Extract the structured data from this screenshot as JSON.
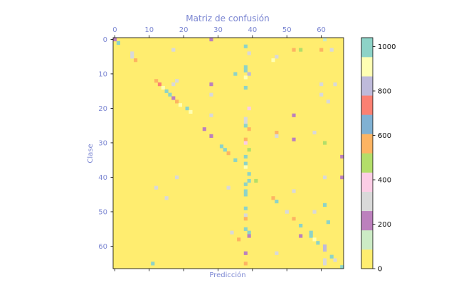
{
  "chart_data": {
    "type": "heatmap",
    "title": "Matriz de confusión",
    "xlabel": "Predicción",
    "ylabel": "Clase",
    "size": 67,
    "x_ticks": [
      0,
      10,
      20,
      30,
      40,
      50,
      60
    ],
    "y_ticks": [
      0,
      10,
      20,
      30,
      40,
      50,
      60
    ],
    "colorbar_ticks": [
      0,
      200,
      400,
      600,
      800,
      1000
    ],
    "colorbar_range": [
      0,
      1040
    ],
    "colormap": [
      "#ffed6f",
      "#ccebc5",
      "#bc80bd",
      "#d9d9d9",
      "#fccde5",
      "#b3de69",
      "#fdb462",
      "#80b1d3",
      "#fb8072",
      "#bebada",
      "#ffffb3",
      "#8dd3c7"
    ],
    "background_value": 0,
    "cells": [
      [
        0,
        0,
        200
      ],
      [
        0,
        28,
        200
      ],
      [
        0,
        61,
        130
      ],
      [
        1,
        1,
        1000
      ],
      [
        2,
        38,
        1000
      ],
      [
        3,
        17,
        300
      ],
      [
        3,
        52,
        550
      ],
      [
        3,
        54,
        450
      ],
      [
        3,
        60,
        520
      ],
      [
        3,
        63,
        300
      ],
      [
        4,
        5,
        300
      ],
      [
        4,
        39,
        300
      ],
      [
        5,
        5,
        300
      ],
      [
        5,
        47,
        300
      ],
      [
        6,
        6,
        550
      ],
      [
        6,
        46,
        950
      ],
      [
        8,
        38,
        1000
      ],
      [
        9,
        38,
        1000
      ],
      [
        10,
        35,
        1000
      ],
      [
        10,
        39,
        850
      ],
      [
        11,
        38,
        950
      ],
      [
        12,
        12,
        600
      ],
      [
        12,
        18,
        300
      ],
      [
        13,
        13,
        700
      ],
      [
        13,
        17,
        300
      ],
      [
        13,
        28,
        200
      ],
      [
        13,
        60,
        300
      ],
      [
        13,
        64,
        300
      ],
      [
        14,
        14,
        900
      ],
      [
        14,
        38,
        1000
      ],
      [
        15,
        15,
        1000
      ],
      [
        16,
        16,
        1000
      ],
      [
        16,
        28,
        300
      ],
      [
        16,
        60,
        300
      ],
      [
        17,
        17,
        200
      ],
      [
        18,
        18,
        600
      ],
      [
        18,
        62,
        300
      ],
      [
        19,
        19,
        950
      ],
      [
        20,
        21,
        1000
      ],
      [
        20,
        39,
        350
      ],
      [
        21,
        22,
        950
      ],
      [
        22,
        28,
        300
      ],
      [
        22,
        52,
        250
      ],
      [
        23,
        38,
        300
      ],
      [
        24,
        38,
        300
      ],
      [
        25,
        38,
        1000
      ],
      [
        26,
        39,
        550
      ],
      [
        26,
        26,
        200
      ],
      [
        27,
        47,
        550
      ],
      [
        27,
        58,
        300
      ],
      [
        28,
        28,
        200
      ],
      [
        28,
        47,
        300
      ],
      [
        29,
        38,
        600
      ],
      [
        29,
        52,
        200
      ],
      [
        30,
        38,
        350
      ],
      [
        30,
        61,
        450
      ],
      [
        31,
        31,
        1000
      ],
      [
        32,
        32,
        1000
      ],
      [
        32,
        39,
        450
      ],
      [
        33,
        33,
        600
      ],
      [
        34,
        38,
        1000
      ],
      [
        34,
        66,
        200
      ],
      [
        35,
        35,
        1000
      ],
      [
        36,
        38,
        1000
      ],
      [
        37,
        38,
        950
      ],
      [
        39,
        39,
        1000
      ],
      [
        40,
        18,
        300
      ],
      [
        40,
        61,
        300
      ],
      [
        40,
        66,
        200
      ],
      [
        41,
        39,
        1000
      ],
      [
        41,
        41,
        450
      ],
      [
        42,
        38,
        1000
      ],
      [
        43,
        12,
        300
      ],
      [
        43,
        33,
        300
      ],
      [
        44,
        38,
        1000
      ],
      [
        44,
        52,
        300
      ],
      [
        45,
        38,
        1000
      ],
      [
        46,
        15,
        300
      ],
      [
        46,
        46,
        550
      ],
      [
        47,
        47,
        1000
      ],
      [
        48,
        61,
        1000
      ],
      [
        49,
        38,
        1000
      ],
      [
        50,
        50,
        300
      ],
      [
        50,
        58,
        300
      ],
      [
        51,
        38,
        300
      ],
      [
        52,
        38,
        550
      ],
      [
        52,
        52,
        550
      ],
      [
        53,
        62,
        1000
      ],
      [
        54,
        54,
        1000
      ],
      [
        55,
        38,
        1000
      ],
      [
        56,
        34,
        300
      ],
      [
        56,
        39,
        1000
      ],
      [
        56,
        57,
        1000
      ],
      [
        57,
        39,
        200
      ],
      [
        57,
        54,
        200
      ],
      [
        57,
        57,
        1000
      ],
      [
        58,
        36,
        600
      ],
      [
        58,
        58,
        950
      ],
      [
        59,
        59,
        1000
      ],
      [
        60,
        61,
        800
      ],
      [
        61,
        61,
        800
      ],
      [
        62,
        38,
        200
      ],
      [
        62,
        47,
        300
      ],
      [
        63,
        63,
        1000
      ],
      [
        64,
        61,
        300
      ],
      [
        64,
        64,
        300
      ],
      [
        65,
        11,
        1000
      ],
      [
        65,
        38,
        600
      ],
      [
        65,
        61,
        300
      ],
      [
        66,
        66,
        1000
      ]
    ]
  }
}
